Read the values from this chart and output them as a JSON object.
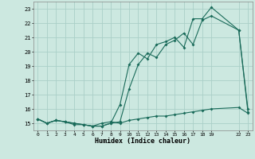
{
  "xlabel": "Humidex (Indice chaleur)",
  "bg_color": "#cce8e0",
  "grid_color": "#aacfc8",
  "line_color": "#1a6b5a",
  "xlim": [
    -0.5,
    23.5
  ],
  "ylim": [
    14.5,
    23.5
  ],
  "xticks": [
    0,
    1,
    2,
    3,
    4,
    5,
    6,
    7,
    8,
    9,
    10,
    11,
    12,
    13,
    14,
    15,
    16,
    17,
    18,
    19,
    22,
    23
  ],
  "yticks": [
    15,
    16,
    17,
    18,
    19,
    20,
    21,
    22,
    23
  ],
  "line1_x": [
    0,
    1,
    2,
    3,
    4,
    5,
    6,
    7,
    8,
    9,
    10,
    11,
    12,
    13,
    14,
    15,
    16,
    17,
    18,
    19,
    22,
    23
  ],
  "line1_y": [
    15.3,
    15.0,
    15.2,
    15.1,
    14.9,
    14.9,
    14.8,
    15.0,
    15.1,
    15.0,
    15.2,
    15.3,
    15.4,
    15.5,
    15.5,
    15.6,
    15.7,
    15.8,
    15.9,
    16.0,
    16.1,
    15.7
  ],
  "line2_x": [
    0,
    1,
    2,
    3,
    4,
    5,
    6,
    7,
    8,
    9,
    10,
    11,
    12,
    13,
    14,
    15,
    16,
    17,
    18,
    19,
    22,
    23
  ],
  "line2_y": [
    15.3,
    15.0,
    15.2,
    15.1,
    15.0,
    14.9,
    14.8,
    14.8,
    15.0,
    15.1,
    17.4,
    19.1,
    19.9,
    19.6,
    20.5,
    20.8,
    21.3,
    20.5,
    22.2,
    22.5,
    21.5,
    15.8
  ],
  "line3_x": [
    0,
    1,
    2,
    3,
    4,
    5,
    6,
    7,
    8,
    9,
    10,
    11,
    12,
    13,
    14,
    15,
    16,
    17,
    18,
    19,
    22,
    23
  ],
  "line3_y": [
    15.3,
    15.0,
    15.2,
    15.1,
    15.0,
    14.9,
    14.8,
    14.8,
    15.0,
    16.3,
    19.1,
    19.9,
    19.5,
    20.5,
    20.7,
    21.0,
    20.3,
    22.3,
    22.3,
    23.1,
    21.5,
    16.0
  ]
}
